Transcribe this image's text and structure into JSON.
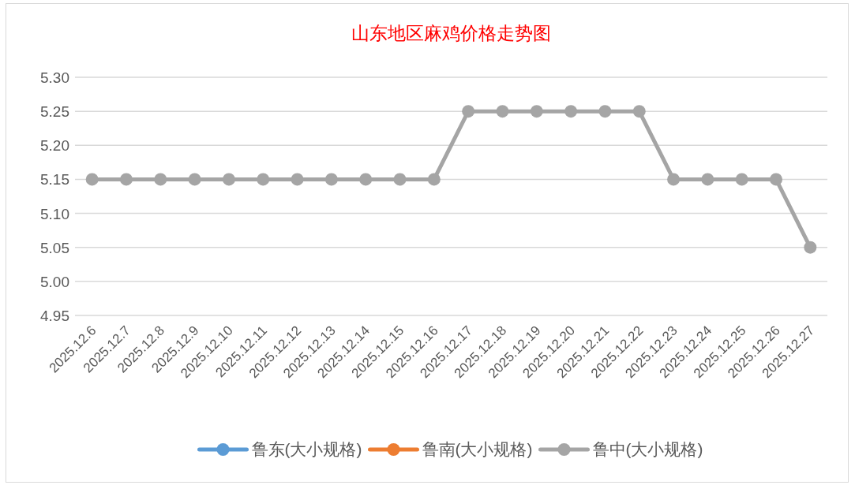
{
  "chart_data": {
    "type": "line",
    "title": "山东地区麻鸡价格走势图",
    "categories": [
      "2025.12.6",
      "2025.12.7",
      "2025.12.8",
      "2025.12.9",
      "2025.12.10",
      "2025.12.11",
      "2025.12.12",
      "2025.12.13",
      "2025.12.14",
      "2025.12.15",
      "2025.12.16",
      "2025.12.17",
      "2025.12.18",
      "2025.12.19",
      "2025.12.20",
      "2025.12.21",
      "2025.12.22",
      "2025.12.23",
      "2025.12.24",
      "2025.12.25",
      "2025.12.26",
      "2025.12.27"
    ],
    "series": [
      {
        "name": "鲁东(大小规格)",
        "color": "#5b9bd5",
        "values": [
          null,
          null,
          null,
          null,
          null,
          null,
          null,
          null,
          null,
          null,
          null,
          null,
          null,
          null,
          null,
          null,
          null,
          null,
          null,
          null,
          null,
          null
        ]
      },
      {
        "name": "鲁南(大小规格)",
        "color": "#ed7d31",
        "values": [
          null,
          null,
          null,
          null,
          null,
          null,
          null,
          null,
          null,
          null,
          null,
          null,
          null,
          null,
          null,
          null,
          null,
          null,
          null,
          null,
          null,
          null
        ]
      },
      {
        "name": "鲁中(大小规格)",
        "color": "#a5a5a5",
        "values": [
          5.15,
          5.15,
          5.15,
          5.15,
          5.15,
          5.15,
          5.15,
          5.15,
          5.15,
          5.15,
          5.15,
          5.25,
          5.25,
          5.25,
          5.25,
          5.25,
          5.25,
          5.15,
          5.15,
          5.15,
          5.15,
          5.05
        ]
      }
    ],
    "ylim": [
      4.95,
      5.3
    ],
    "yticks": [
      {
        "value": 4.95,
        "label": "4.95"
      },
      {
        "value": 5.0,
        "label": "5.00"
      },
      {
        "value": 5.05,
        "label": "5.05"
      },
      {
        "value": 5.1,
        "label": "5.10"
      },
      {
        "value": 5.15,
        "label": "5.15"
      },
      {
        "value": 5.2,
        "label": "5.20"
      },
      {
        "value": 5.25,
        "label": "5.25"
      },
      {
        "value": 5.3,
        "label": "5.30"
      }
    ],
    "grid": "y",
    "legend": "bottom",
    "marker": "circle",
    "line_style": "solid"
  }
}
